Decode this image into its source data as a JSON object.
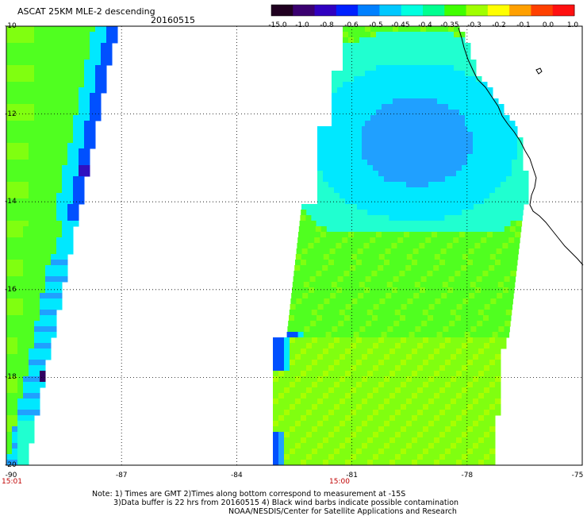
{
  "header": {
    "title": "ASCAT 25KM MLE-2 descending",
    "date": "20160515"
  },
  "colorbar": {
    "labels": [
      "-15.0",
      "-1.0",
      "-0.8",
      "-0.6",
      "-0.5",
      "-0.45",
      "-0.4",
      "-0.35",
      "-0.3",
      "-0.2",
      "-0.1",
      "0.0",
      "1.0"
    ],
    "colors": [
      "#200020",
      "#3a0070",
      "#3000c0",
      "#0020ff",
      "#0080ff",
      "#00c8ff",
      "#00ffe0",
      "#00ff90",
      "#40ff00",
      "#a0ff00",
      "#ffff00",
      "#ffa000",
      "#ff4000",
      "#ff1010"
    ]
  },
  "map": {
    "lat_labels": [
      "-10",
      "-12",
      "-14",
      "-16",
      "-18",
      "-20"
    ],
    "lon_labels": [
      "-90",
      "-87",
      "-84",
      "-81",
      "-78",
      "-75"
    ],
    "lat_values": [
      -10,
      -12,
      -14,
      -16,
      -18,
      -20
    ],
    "lon_values": [
      -90,
      -87,
      -84,
      -81,
      -78,
      -75
    ],
    "swath_times": [
      {
        "label": "15:01",
        "lon": -90
      },
      {
        "label": "15:00",
        "lon": -81
      }
    ]
  },
  "notes": {
    "line1": "Note: 1) Times are GMT 2)Times along bottom correspond to measurement at -15S",
    "line2": "3)Data buffer is 22 hrs from 20160515 4) Black wind barbs indicate possible contamination",
    "line3": "NOAA/NESDIS/Center for Satellite Applications and Research"
  }
}
